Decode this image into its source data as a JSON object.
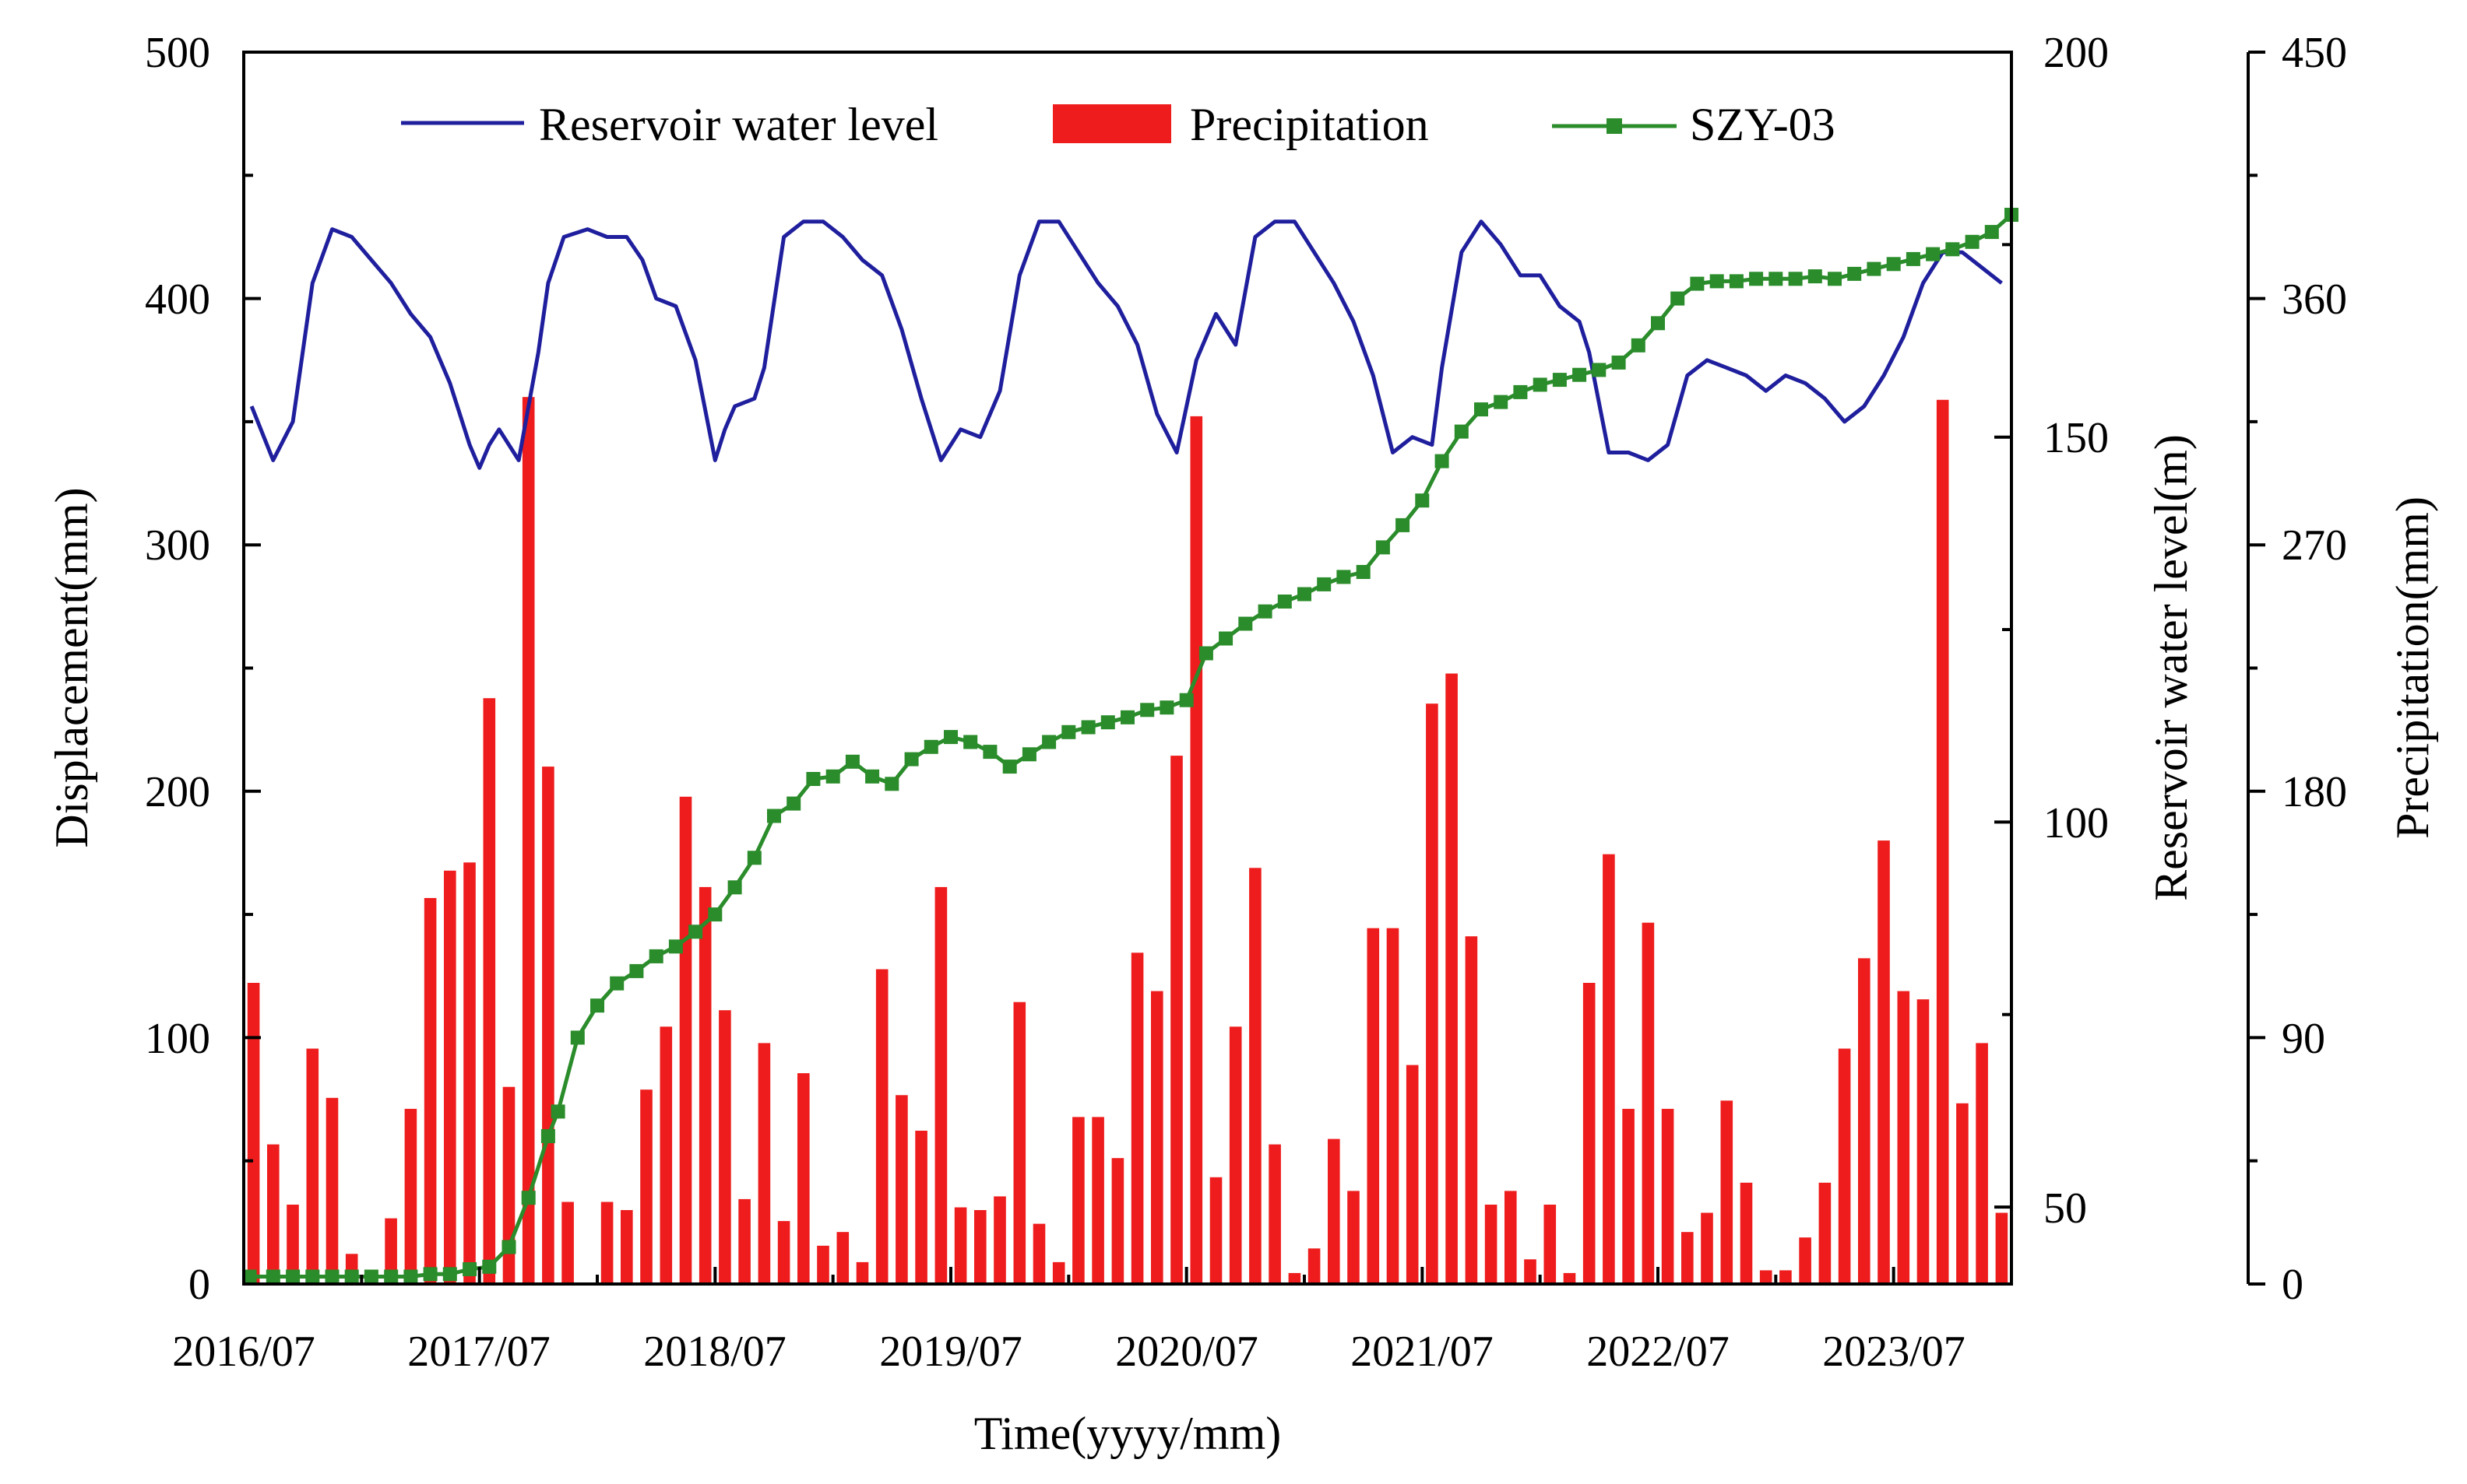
{
  "chart_data": {
    "type": "bar+line",
    "x_label": "Time(yyyy/mm)",
    "x_ticks": [
      "2016/07",
      "2017/07",
      "2018/07",
      "2019/07",
      "2020/07",
      "2021/07",
      "2022/07",
      "2023/07"
    ],
    "x_range_months": [
      0,
      90
    ],
    "axes": {
      "displacement": {
        "label": "Displacement(mm)",
        "range": [
          0,
          500
        ],
        "ticks": [
          "0",
          "100",
          "200",
          "300",
          "400",
          "500"
        ]
      },
      "water_level": {
        "label": "Reservoir water level(m)",
        "range": [
          40,
          200
        ],
        "ticks": [
          "50",
          "100",
          "150",
          "200"
        ]
      },
      "precipitation": {
        "label": "Precipitation(mm)",
        "range": [
          0,
          450
        ],
        "ticks": [
          "0",
          "90",
          "180",
          "270",
          "360",
          "450"
        ]
      }
    },
    "legend": {
      "water_level": "Reservoir water level",
      "precipitation": "Precipitation",
      "displacement": "SZY-03"
    },
    "colors": {
      "water_level": "#1f1f9e",
      "precipitation": "#ee1c1c",
      "displacement": "#2a8c2a",
      "axis": "#000000"
    },
    "precipitation": [
      {
        "m": 0.5,
        "v": 110
      },
      {
        "m": 1.5,
        "v": 51
      },
      {
        "m": 2.5,
        "v": 29
      },
      {
        "m": 3.5,
        "v": 86
      },
      {
        "m": 4.5,
        "v": 68
      },
      {
        "m": 5.5,
        "v": 11
      },
      {
        "m": 6.5,
        "v": 0
      },
      {
        "m": 7.5,
        "v": 24
      },
      {
        "m": 8.5,
        "v": 64
      },
      {
        "m": 9.5,
        "v": 141
      },
      {
        "m": 10.5,
        "v": 151
      },
      {
        "m": 11.5,
        "v": 154
      },
      {
        "m": 12.5,
        "v": 214
      },
      {
        "m": 13.5,
        "v": 72
      },
      {
        "m": 14.5,
        "v": 324
      },
      {
        "m": 15.5,
        "v": 189
      },
      {
        "m": 16.5,
        "v": 30
      },
      {
        "m": 17.5,
        "v": 0
      },
      {
        "m": 18.5,
        "v": 30
      },
      {
        "m": 19.5,
        "v": 27
      },
      {
        "m": 20.5,
        "v": 71
      },
      {
        "m": 21.5,
        "v": 94
      },
      {
        "m": 22.5,
        "v": 178
      },
      {
        "m": 23.5,
        "v": 145
      },
      {
        "m": 24.5,
        "v": 100
      },
      {
        "m": 25.5,
        "v": 31
      },
      {
        "m": 26.5,
        "v": 88
      },
      {
        "m": 27.5,
        "v": 23
      },
      {
        "m": 28.5,
        "v": 77
      },
      {
        "m": 29.5,
        "v": 14
      },
      {
        "m": 30.5,
        "v": 19
      },
      {
        "m": 31.5,
        "v": 8
      },
      {
        "m": 32.5,
        "v": 115
      },
      {
        "m": 33.5,
        "v": 69
      },
      {
        "m": 34.5,
        "v": 56
      },
      {
        "m": 35.5,
        "v": 145
      },
      {
        "m": 36.5,
        "v": 28
      },
      {
        "m": 37.5,
        "v": 27
      },
      {
        "m": 38.5,
        "v": 32
      },
      {
        "m": 39.5,
        "v": 103
      },
      {
        "m": 40.5,
        "v": 22
      },
      {
        "m": 41.5,
        "v": 8
      },
      {
        "m": 42.5,
        "v": 61
      },
      {
        "m": 43.5,
        "v": 61
      },
      {
        "m": 44.5,
        "v": 46
      },
      {
        "m": 45.5,
        "v": 121
      },
      {
        "m": 46.5,
        "v": 107
      },
      {
        "m": 47.5,
        "v": 193
      },
      {
        "m": 48.5,
        "v": 317
      },
      {
        "m": 49.5,
        "v": 39
      },
      {
        "m": 50.5,
        "v": 94
      },
      {
        "m": 51.5,
        "v": 152
      },
      {
        "m": 52.5,
        "v": 51
      },
      {
        "m": 53.5,
        "v": 4
      },
      {
        "m": 54.5,
        "v": 13
      },
      {
        "m": 55.5,
        "v": 53
      },
      {
        "m": 56.5,
        "v": 34
      },
      {
        "m": 57.5,
        "v": 130
      },
      {
        "m": 58.5,
        "v": 130
      },
      {
        "m": 59.5,
        "v": 80
      },
      {
        "m": 60.5,
        "v": 212
      },
      {
        "m": 61.5,
        "v": 223
      },
      {
        "m": 62.5,
        "v": 127
      },
      {
        "m": 63.5,
        "v": 29
      },
      {
        "m": 64.5,
        "v": 34
      },
      {
        "m": 65.5,
        "v": 9
      },
      {
        "m": 66.5,
        "v": 29
      },
      {
        "m": 67.5,
        "v": 4
      },
      {
        "m": 68.5,
        "v": 110
      },
      {
        "m": 69.5,
        "v": 157
      },
      {
        "m": 70.5,
        "v": 64
      },
      {
        "m": 71.5,
        "v": 132
      },
      {
        "m": 72.5,
        "v": 64
      },
      {
        "m": 73.5,
        "v": 19
      },
      {
        "m": 74.5,
        "v": 26
      },
      {
        "m": 75.5,
        "v": 67
      },
      {
        "m": 76.5,
        "v": 37
      },
      {
        "m": 77.5,
        "v": 5
      },
      {
        "m": 78.5,
        "v": 5
      },
      {
        "m": 79.5,
        "v": 17
      },
      {
        "m": 80.5,
        "v": 37
      },
      {
        "m": 81.5,
        "v": 86
      },
      {
        "m": 82.5,
        "v": 119
      },
      {
        "m": 83.5,
        "v": 162
      },
      {
        "m": 84.5,
        "v": 107
      },
      {
        "m": 85.5,
        "v": 104
      },
      {
        "m": 86.5,
        "v": 323
      },
      {
        "m": 87.5,
        "v": 66
      },
      {
        "m": 88.5,
        "v": 88
      },
      {
        "m": 89.5,
        "v": 26
      }
    ],
    "water_level": [
      {
        "m": 0.4,
        "v": 154
      },
      {
        "m": 1.5,
        "v": 147
      },
      {
        "m": 2.5,
        "v": 152
      },
      {
        "m": 3.5,
        "v": 170
      },
      {
        "m": 4.5,
        "v": 177
      },
      {
        "m": 5.5,
        "v": 176
      },
      {
        "m": 6.5,
        "v": 173
      },
      {
        "m": 7.5,
        "v": 170
      },
      {
        "m": 8.5,
        "v": 166
      },
      {
        "m": 9.5,
        "v": 163
      },
      {
        "m": 10.5,
        "v": 157
      },
      {
        "m": 11.5,
        "v": 149
      },
      {
        "m": 12.0,
        "v": 146
      },
      {
        "m": 12.5,
        "v": 149
      },
      {
        "m": 13.0,
        "v": 151
      },
      {
        "m": 14.0,
        "v": 147
      },
      {
        "m": 15.0,
        "v": 161
      },
      {
        "m": 15.5,
        "v": 170
      },
      {
        "m": 16.3,
        "v": 176
      },
      {
        "m": 17.5,
        "v": 177
      },
      {
        "m": 18.5,
        "v": 176
      },
      {
        "m": 19.5,
        "v": 176
      },
      {
        "m": 20.3,
        "v": 173
      },
      {
        "m": 21.0,
        "v": 168
      },
      {
        "m": 22.0,
        "v": 167
      },
      {
        "m": 23.0,
        "v": 160
      },
      {
        "m": 24.0,
        "v": 147
      },
      {
        "m": 24.5,
        "v": 151
      },
      {
        "m": 25.0,
        "v": 154
      },
      {
        "m": 26.0,
        "v": 155
      },
      {
        "m": 26.5,
        "v": 159
      },
      {
        "m": 27.5,
        "v": 176
      },
      {
        "m": 28.5,
        "v": 178
      },
      {
        "m": 29.5,
        "v": 178
      },
      {
        "m": 30.5,
        "v": 176
      },
      {
        "m": 31.5,
        "v": 173
      },
      {
        "m": 32.5,
        "v": 171
      },
      {
        "m": 33.5,
        "v": 164
      },
      {
        "m": 34.5,
        "v": 155
      },
      {
        "m": 35.5,
        "v": 147
      },
      {
        "m": 36.5,
        "v": 151
      },
      {
        "m": 37.5,
        "v": 150
      },
      {
        "m": 38.5,
        "v": 156
      },
      {
        "m": 39.5,
        "v": 171
      },
      {
        "m": 40.5,
        "v": 178
      },
      {
        "m": 41.5,
        "v": 178
      },
      {
        "m": 42.5,
        "v": 174
      },
      {
        "m": 43.5,
        "v": 170
      },
      {
        "m": 44.5,
        "v": 167
      },
      {
        "m": 45.5,
        "v": 162
      },
      {
        "m": 46.5,
        "v": 153
      },
      {
        "m": 47.5,
        "v": 148
      },
      {
        "m": 48.5,
        "v": 160
      },
      {
        "m": 49.5,
        "v": 166
      },
      {
        "m": 50.5,
        "v": 162
      },
      {
        "m": 51.5,
        "v": 176
      },
      {
        "m": 52.5,
        "v": 178
      },
      {
        "m": 53.5,
        "v": 178
      },
      {
        "m": 54.5,
        "v": 174
      },
      {
        "m": 55.5,
        "v": 170
      },
      {
        "m": 56.5,
        "v": 165
      },
      {
        "m": 57.5,
        "v": 158
      },
      {
        "m": 58.5,
        "v": 148
      },
      {
        "m": 59.5,
        "v": 150
      },
      {
        "m": 60.5,
        "v": 149
      },
      {
        "m": 61.0,
        "v": 159
      },
      {
        "m": 62.0,
        "v": 174
      },
      {
        "m": 63.0,
        "v": 178
      },
      {
        "m": 64.0,
        "v": 175
      },
      {
        "m": 65.0,
        "v": 171
      },
      {
        "m": 66.0,
        "v": 171
      },
      {
        "m": 67.0,
        "v": 167
      },
      {
        "m": 68.0,
        "v": 165
      },
      {
        "m": 68.5,
        "v": 161
      },
      {
        "m": 69.5,
        "v": 148
      },
      {
        "m": 70.5,
        "v": 148
      },
      {
        "m": 71.5,
        "v": 147
      },
      {
        "m": 72.5,
        "v": 149
      },
      {
        "m": 73.5,
        "v": 158
      },
      {
        "m": 74.5,
        "v": 160
      },
      {
        "m": 75.5,
        "v": 159
      },
      {
        "m": 76.5,
        "v": 158
      },
      {
        "m": 77.5,
        "v": 156
      },
      {
        "m": 78.5,
        "v": 158
      },
      {
        "m": 79.5,
        "v": 157
      },
      {
        "m": 80.5,
        "v": 155
      },
      {
        "m": 81.5,
        "v": 152
      },
      {
        "m": 82.5,
        "v": 154
      },
      {
        "m": 83.5,
        "v": 158
      },
      {
        "m": 84.5,
        "v": 163
      },
      {
        "m": 85.5,
        "v": 170
      },
      {
        "m": 86.5,
        "v": 174
      },
      {
        "m": 87.5,
        "v": 174
      },
      {
        "m": 88.5,
        "v": 172
      },
      {
        "m": 89.5,
        "v": 170
      }
    ],
    "displacement": [
      {
        "m": 0.3,
        "v": 3
      },
      {
        "m": 1.5,
        "v": 3
      },
      {
        "m": 2.5,
        "v": 3
      },
      {
        "m": 3.5,
        "v": 3
      },
      {
        "m": 4.5,
        "v": 3
      },
      {
        "m": 5.5,
        "v": 3
      },
      {
        "m": 6.5,
        "v": 3
      },
      {
        "m": 7.5,
        "v": 3
      },
      {
        "m": 8.5,
        "v": 3
      },
      {
        "m": 9.5,
        "v": 4
      },
      {
        "m": 10.5,
        "v": 4
      },
      {
        "m": 11.5,
        "v": 6
      },
      {
        "m": 12.5,
        "v": 7
      },
      {
        "m": 13.5,
        "v": 15
      },
      {
        "m": 14.5,
        "v": 35
      },
      {
        "m": 15.5,
        "v": 60
      },
      {
        "m": 16.0,
        "v": 70
      },
      {
        "m": 17.0,
        "v": 100
      },
      {
        "m": 18.0,
        "v": 113
      },
      {
        "m": 19.0,
        "v": 122
      },
      {
        "m": 20.0,
        "v": 127
      },
      {
        "m": 21.0,
        "v": 133
      },
      {
        "m": 22.0,
        "v": 137
      },
      {
        "m": 23.0,
        "v": 143
      },
      {
        "m": 24.0,
        "v": 150
      },
      {
        "m": 25.0,
        "v": 161
      },
      {
        "m": 26.0,
        "v": 173
      },
      {
        "m": 27.0,
        "v": 190
      },
      {
        "m": 28.0,
        "v": 195
      },
      {
        "m": 29.0,
        "v": 205
      },
      {
        "m": 30.0,
        "v": 206
      },
      {
        "m": 31.0,
        "v": 212
      },
      {
        "m": 32.0,
        "v": 206
      },
      {
        "m": 33.0,
        "v": 203
      },
      {
        "m": 34.0,
        "v": 213
      },
      {
        "m": 35.0,
        "v": 218
      },
      {
        "m": 36.0,
        "v": 222
      },
      {
        "m": 37.0,
        "v": 220
      },
      {
        "m": 38.0,
        "v": 216
      },
      {
        "m": 39.0,
        "v": 210
      },
      {
        "m": 40.0,
        "v": 215
      },
      {
        "m": 41.0,
        "v": 220
      },
      {
        "m": 42.0,
        "v": 224
      },
      {
        "m": 43.0,
        "v": 226
      },
      {
        "m": 44.0,
        "v": 228
      },
      {
        "m": 45.0,
        "v": 230
      },
      {
        "m": 46.0,
        "v": 233
      },
      {
        "m": 47.0,
        "v": 234
      },
      {
        "m": 48.0,
        "v": 237
      },
      {
        "m": 49.0,
        "v": 256
      },
      {
        "m": 50.0,
        "v": 262
      },
      {
        "m": 51.0,
        "v": 268
      },
      {
        "m": 52.0,
        "v": 273
      },
      {
        "m": 53.0,
        "v": 277
      },
      {
        "m": 54.0,
        "v": 280
      },
      {
        "m": 55.0,
        "v": 284
      },
      {
        "m": 56.0,
        "v": 287
      },
      {
        "m": 57.0,
        "v": 289
      },
      {
        "m": 58.0,
        "v": 299
      },
      {
        "m": 59.0,
        "v": 308
      },
      {
        "m": 60.0,
        "v": 318
      },
      {
        "m": 61.0,
        "v": 334
      },
      {
        "m": 62.0,
        "v": 346
      },
      {
        "m": 63.0,
        "v": 355
      },
      {
        "m": 64.0,
        "v": 358
      },
      {
        "m": 65.0,
        "v": 362
      },
      {
        "m": 66.0,
        "v": 365
      },
      {
        "m": 67.0,
        "v": 367
      },
      {
        "m": 68.0,
        "v": 369
      },
      {
        "m": 69.0,
        "v": 371
      },
      {
        "m": 70.0,
        "v": 374
      },
      {
        "m": 71.0,
        "v": 381
      },
      {
        "m": 72.0,
        "v": 390
      },
      {
        "m": 73.0,
        "v": 400
      },
      {
        "m": 74.0,
        "v": 406
      },
      {
        "m": 75.0,
        "v": 407
      },
      {
        "m": 76.0,
        "v": 407
      },
      {
        "m": 77.0,
        "v": 408
      },
      {
        "m": 78.0,
        "v": 408
      },
      {
        "m": 79.0,
        "v": 408
      },
      {
        "m": 80.0,
        "v": 409
      },
      {
        "m": 81.0,
        "v": 408
      },
      {
        "m": 82.0,
        "v": 410
      },
      {
        "m": 83.0,
        "v": 412
      },
      {
        "m": 84.0,
        "v": 414
      },
      {
        "m": 85.0,
        "v": 416
      },
      {
        "m": 86.0,
        "v": 418
      },
      {
        "m": 87.0,
        "v": 420
      },
      {
        "m": 88.0,
        "v": 423
      },
      {
        "m": 89.0,
        "v": 427
      },
      {
        "m": 90.0,
        "v": 434
      }
    ]
  }
}
